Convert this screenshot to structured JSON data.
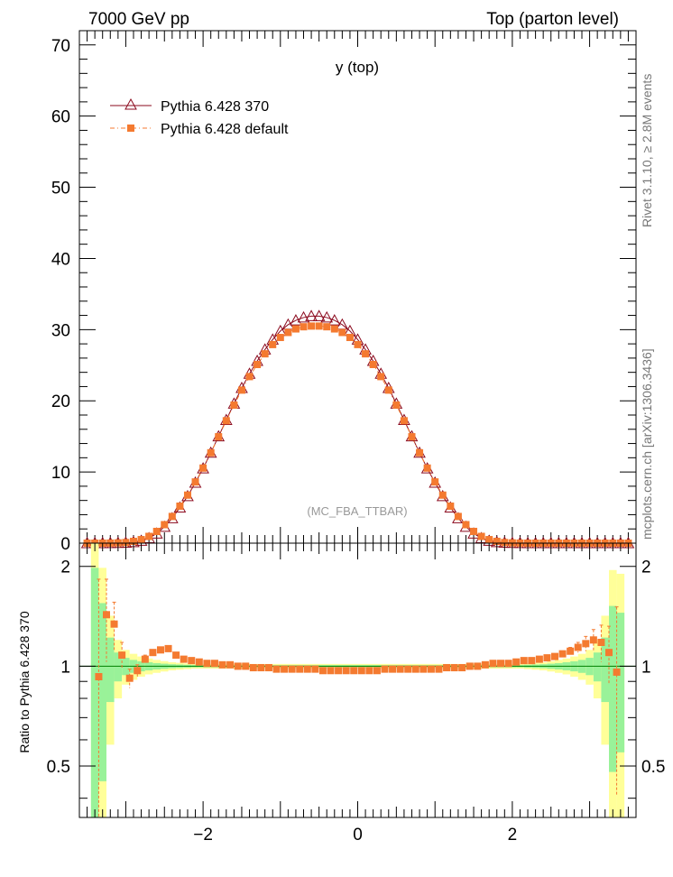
{
  "header": {
    "left": "7000 GeV pp",
    "right": "Top (parton level)"
  },
  "side_labels": {
    "rivet": "Rivet 3.1.10, ≥ 2.8M events",
    "mcplots": "mcplots.cern.ch [arXiv:1306.3436]"
  },
  "colors": {
    "ref": "#8b0a1e",
    "mc": "#f47a30",
    "band_inner": "#99f299",
    "band_outer": "#ffff99",
    "unity": "#008000"
  },
  "chart_data": [
    {
      "type": "line",
      "title": "y (top)",
      "annotation": "(MC_FBA_TTBAR)",
      "xlabel": "",
      "ylabel": "",
      "xlim": [
        -3.6,
        3.6
      ],
      "ylim": [
        0,
        72
      ],
      "yticks": [
        "0",
        "10",
        "20",
        "30",
        "40",
        "50",
        "60",
        "70"
      ],
      "legend_position": "top-left",
      "x": [
        -3.5,
        -3.4,
        -3.3,
        -3.2,
        -3.1,
        -3.0,
        -2.9,
        -2.8,
        -2.7,
        -2.6,
        -2.5,
        -2.4,
        -2.3,
        -2.2,
        -2.1,
        -2.0,
        -1.9,
        -1.8,
        -1.7,
        -1.6,
        -1.5,
        -1.4,
        -1.3,
        -1.2,
        -1.1,
        -1.0,
        -0.9,
        -0.8,
        -0.7,
        -0.6,
        -0.5,
        -0.4,
        -0.3,
        -0.2,
        -0.1,
        0.0,
        0.1,
        0.2,
        0.3,
        0.4,
        0.5,
        0.6,
        0.7,
        0.8,
        0.9,
        1.0,
        1.1,
        1.2,
        1.3,
        1.4,
        1.5,
        1.6,
        1.7,
        1.8,
        1.9,
        2.0,
        2.1,
        2.2,
        2.3,
        2.4,
        2.5,
        2.6,
        2.7,
        2.8,
        2.9,
        3.0,
        3.1,
        3.2,
        3.3,
        3.4,
        3.5
      ],
      "series": [
        {
          "name": "Pythia 6.428 370",
          "marker": "open-triangle",
          "values": [
            0.0,
            0.0,
            0.0,
            0.01,
            0.03,
            0.06,
            0.15,
            0.33,
            0.7,
            1.35,
            2.3,
            3.5,
            5.0,
            6.6,
            8.5,
            10.5,
            12.7,
            15.0,
            17.3,
            19.6,
            21.8,
            23.8,
            25.6,
            27.2,
            28.6,
            29.8,
            30.7,
            31.3,
            31.7,
            31.9,
            31.9,
            31.7,
            31.3,
            30.7,
            29.8,
            28.6,
            27.2,
            25.6,
            23.8,
            21.8,
            19.6,
            17.3,
            15.0,
            12.7,
            10.5,
            8.5,
            6.6,
            5.0,
            3.5,
            2.3,
            1.35,
            0.7,
            0.33,
            0.15,
            0.06,
            0.03,
            0.01,
            0.0,
            0.0,
            0.0,
            0.0,
            0.0,
            0.0,
            0.0,
            0.0,
            0.0,
            0.0,
            0.0,
            0.0,
            0.0,
            0.0
          ]
        },
        {
          "name": "Pythia 6.428 default",
          "marker": "filled-square",
          "values": [
            0.0,
            0.0,
            0.0,
            0.01,
            0.04,
            0.09,
            0.25,
            0.5,
            0.95,
            1.65,
            2.6,
            3.75,
            5.2,
            6.75,
            8.6,
            10.55,
            12.7,
            14.95,
            17.2,
            19.4,
            21.5,
            23.4,
            25.1,
            26.6,
            27.9,
            28.9,
            29.6,
            30.1,
            30.4,
            30.5,
            30.5,
            30.4,
            30.1,
            29.6,
            28.9,
            27.9,
            26.6,
            25.1,
            23.4,
            21.5,
            19.4,
            17.2,
            14.95,
            12.7,
            10.55,
            8.6,
            6.75,
            5.2,
            3.75,
            2.6,
            1.65,
            0.95,
            0.5,
            0.25,
            0.09,
            0.04,
            0.01,
            0.0,
            0.0,
            0.0,
            0.0,
            0.0,
            0.0,
            0.0,
            0.0,
            0.0,
            0.0,
            0.0,
            0.0,
            0.0,
            0.0
          ]
        }
      ]
    },
    {
      "type": "line",
      "title": "",
      "xlabel": "",
      "ylabel": "Ratio to Pythia 6.428 370",
      "xlim": [
        -3.6,
        3.6
      ],
      "ylim": [
        0.35,
        2.35
      ],
      "xticks": [
        "−2",
        "0",
        "2"
      ],
      "yticks": [
        "0.5",
        "1",
        "2"
      ],
      "band_x_edges": [
        -3.45,
        -3.35,
        -3.25,
        -3.15,
        -3.05,
        -2.95,
        -2.85,
        -2.75,
        -2.65,
        -2.55,
        -2.45,
        -2.35,
        -2.25,
        -2.15,
        -2.05,
        2.05,
        2.15,
        2.25,
        2.35,
        2.45,
        2.55,
        2.65,
        2.75,
        2.85,
        2.95,
        3.05,
        3.15,
        3.25,
        3.35,
        3.45
      ],
      "band_inner_half_width": [
        0.98,
        0.55,
        0.22,
        0.1,
        0.06,
        0.045,
        0.035,
        0.028,
        0.022,
        0.018,
        0.014,
        0.012,
        0.01,
        0.008,
        0.008,
        0.008,
        0.01,
        0.012,
        0.014,
        0.018,
        0.022,
        0.028,
        0.035,
        0.045,
        0.06,
        0.1,
        0.22,
        0.52,
        0.45
      ],
      "band_outer_half_width": [
        1.4,
        0.98,
        0.42,
        0.2,
        0.12,
        0.09,
        0.07,
        0.055,
        0.045,
        0.036,
        0.028,
        0.024,
        0.02,
        0.016,
        0.016,
        0.016,
        0.02,
        0.024,
        0.028,
        0.036,
        0.045,
        0.055,
        0.07,
        0.09,
        0.12,
        0.2,
        0.42,
        0.95,
        0.9
      ],
      "ratio_x": [
        -3.35,
        -3.25,
        -3.15,
        -3.05,
        -2.95,
        -2.85,
        -2.75,
        -2.65,
        -2.55,
        -2.45,
        -2.35,
        -2.25,
        -2.15,
        -2.05,
        -1.95,
        -1.85,
        -1.75,
        -1.65,
        -1.55,
        -1.45,
        -1.35,
        -1.25,
        -1.15,
        -1.05,
        -0.95,
        -0.85,
        -0.75,
        -0.65,
        -0.55,
        -0.45,
        -0.35,
        -0.25,
        -0.15,
        -0.05,
        0.05,
        0.15,
        0.25,
        0.35,
        0.45,
        0.55,
        0.65,
        0.75,
        0.85,
        0.95,
        1.05,
        1.15,
        1.25,
        1.35,
        1.45,
        1.55,
        1.65,
        1.75,
        1.85,
        1.95,
        2.05,
        2.15,
        2.25,
        2.35,
        2.45,
        2.55,
        2.65,
        2.75,
        2.85,
        2.95,
        3.05,
        3.15,
        3.25,
        3.35
      ],
      "ratio_y": [
        0.93,
        1.43,
        1.34,
        1.08,
        0.92,
        0.97,
        1.05,
        1.1,
        1.12,
        1.13,
        1.08,
        1.05,
        1.04,
        1.03,
        1.02,
        1.02,
        1.01,
        1.01,
        1.0,
        1.0,
        0.99,
        0.99,
        0.99,
        0.98,
        0.98,
        0.98,
        0.98,
        0.98,
        0.98,
        0.97,
        0.97,
        0.97,
        0.97,
        0.97,
        0.97,
        0.97,
        0.97,
        0.98,
        0.98,
        0.98,
        0.98,
        0.98,
        0.98,
        0.98,
        0.98,
        0.99,
        0.99,
        0.99,
        1.0,
        1.0,
        1.01,
        1.02,
        1.02,
        1.02,
        1.03,
        1.04,
        1.04,
        1.05,
        1.06,
        1.07,
        1.09,
        1.11,
        1.14,
        1.17,
        1.2,
        1.18,
        1.1,
        0.96
      ],
      "ratio_err": [
        0.9,
        0.4,
        0.22,
        0.1,
        0.06,
        0.04,
        0.03,
        0.02,
        0.018,
        0.014,
        0.012,
        0.01,
        0.008,
        0.007,
        0.006,
        0.006,
        0.005,
        0.005,
        0.005,
        0.005,
        0.005,
        0.005,
        0.005,
        0.005,
        0.005,
        0.005,
        0.005,
        0.005,
        0.005,
        0.005,
        0.005,
        0.005,
        0.005,
        0.005,
        0.005,
        0.005,
        0.005,
        0.005,
        0.005,
        0.005,
        0.005,
        0.005,
        0.005,
        0.005,
        0.005,
        0.005,
        0.005,
        0.005,
        0.005,
        0.005,
        0.005,
        0.005,
        0.006,
        0.006,
        0.007,
        0.008,
        0.01,
        0.012,
        0.014,
        0.018,
        0.02,
        0.03,
        0.04,
        0.06,
        0.09,
        0.15,
        0.22,
        0.55
      ]
    }
  ]
}
